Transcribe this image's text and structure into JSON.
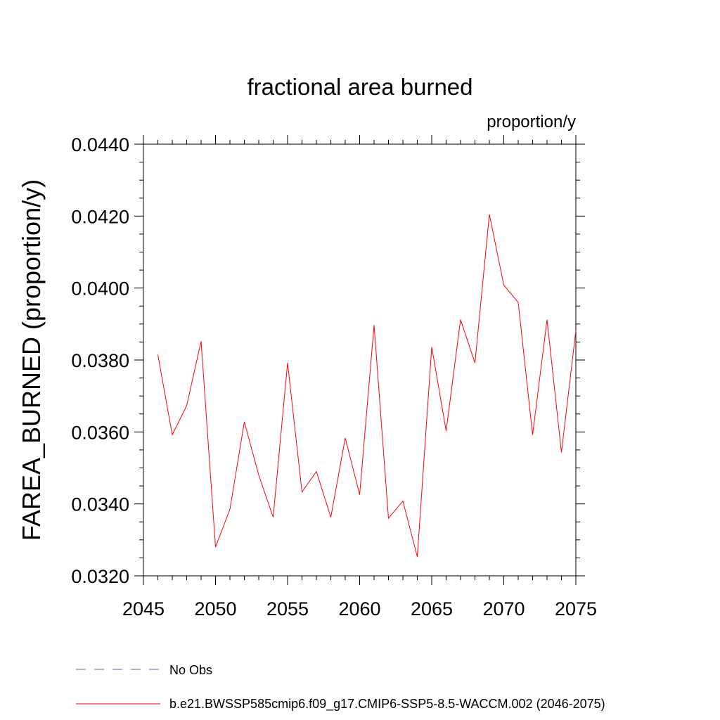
{
  "chart_data": {
    "type": "line",
    "title": "fractional area burned",
    "units_label": "proportion/y",
    "xlabel": "",
    "ylabel": "FAREA_BURNED  (proportion/y)",
    "xlim": [
      2045,
      2075
    ],
    "ylim": [
      0.032,
      0.044
    ],
    "x_ticks": [
      2045,
      2050,
      2055,
      2060,
      2065,
      2070,
      2075
    ],
    "x_tick_labels": [
      "2045",
      "2050",
      "2055",
      "2060",
      "2065",
      "2070",
      "2075"
    ],
    "y_ticks": [
      0.032,
      0.034,
      0.036,
      0.038,
      0.04,
      0.042,
      0.044
    ],
    "y_tick_labels": [
      "0.0320",
      "0.0340",
      "0.0360",
      "0.0380",
      "0.0400",
      "0.0420",
      "0.0440"
    ],
    "grid": false,
    "legend_placement": "bottom",
    "series": [
      {
        "name": "b.e21.BWSSP585cmip6.f09_g17.CMIP6-SSP5-8.5-WACCM.002 (2046-2075)",
        "color": "#ff0000",
        "style": "solid",
        "x": [
          2046,
          2047,
          2048,
          2049,
          2050,
          2051,
          2052,
          2053,
          2054,
          2055,
          2056,
          2057,
          2058,
          2059,
          2060,
          2061,
          2062,
          2063,
          2064,
          2065,
          2066,
          2067,
          2068,
          2069,
          2070,
          2071,
          2072,
          2073,
          2074,
          2075
        ],
        "y": [
          0.03815,
          0.03592,
          0.03673,
          0.03852,
          0.0328,
          0.03385,
          0.03628,
          0.0348,
          0.03363,
          0.03792,
          0.03433,
          0.0349,
          0.03363,
          0.03583,
          0.03426,
          0.03897,
          0.0336,
          0.03408,
          0.03253,
          0.03836,
          0.03603,
          0.03912,
          0.03792,
          0.04205,
          0.04008,
          0.0396,
          0.03592,
          0.03912,
          0.03543,
          0.03882
        ]
      }
    ],
    "legend_extra": [
      {
        "name": "No Obs",
        "color": "#6a5acd",
        "style": "dashed"
      }
    ]
  }
}
